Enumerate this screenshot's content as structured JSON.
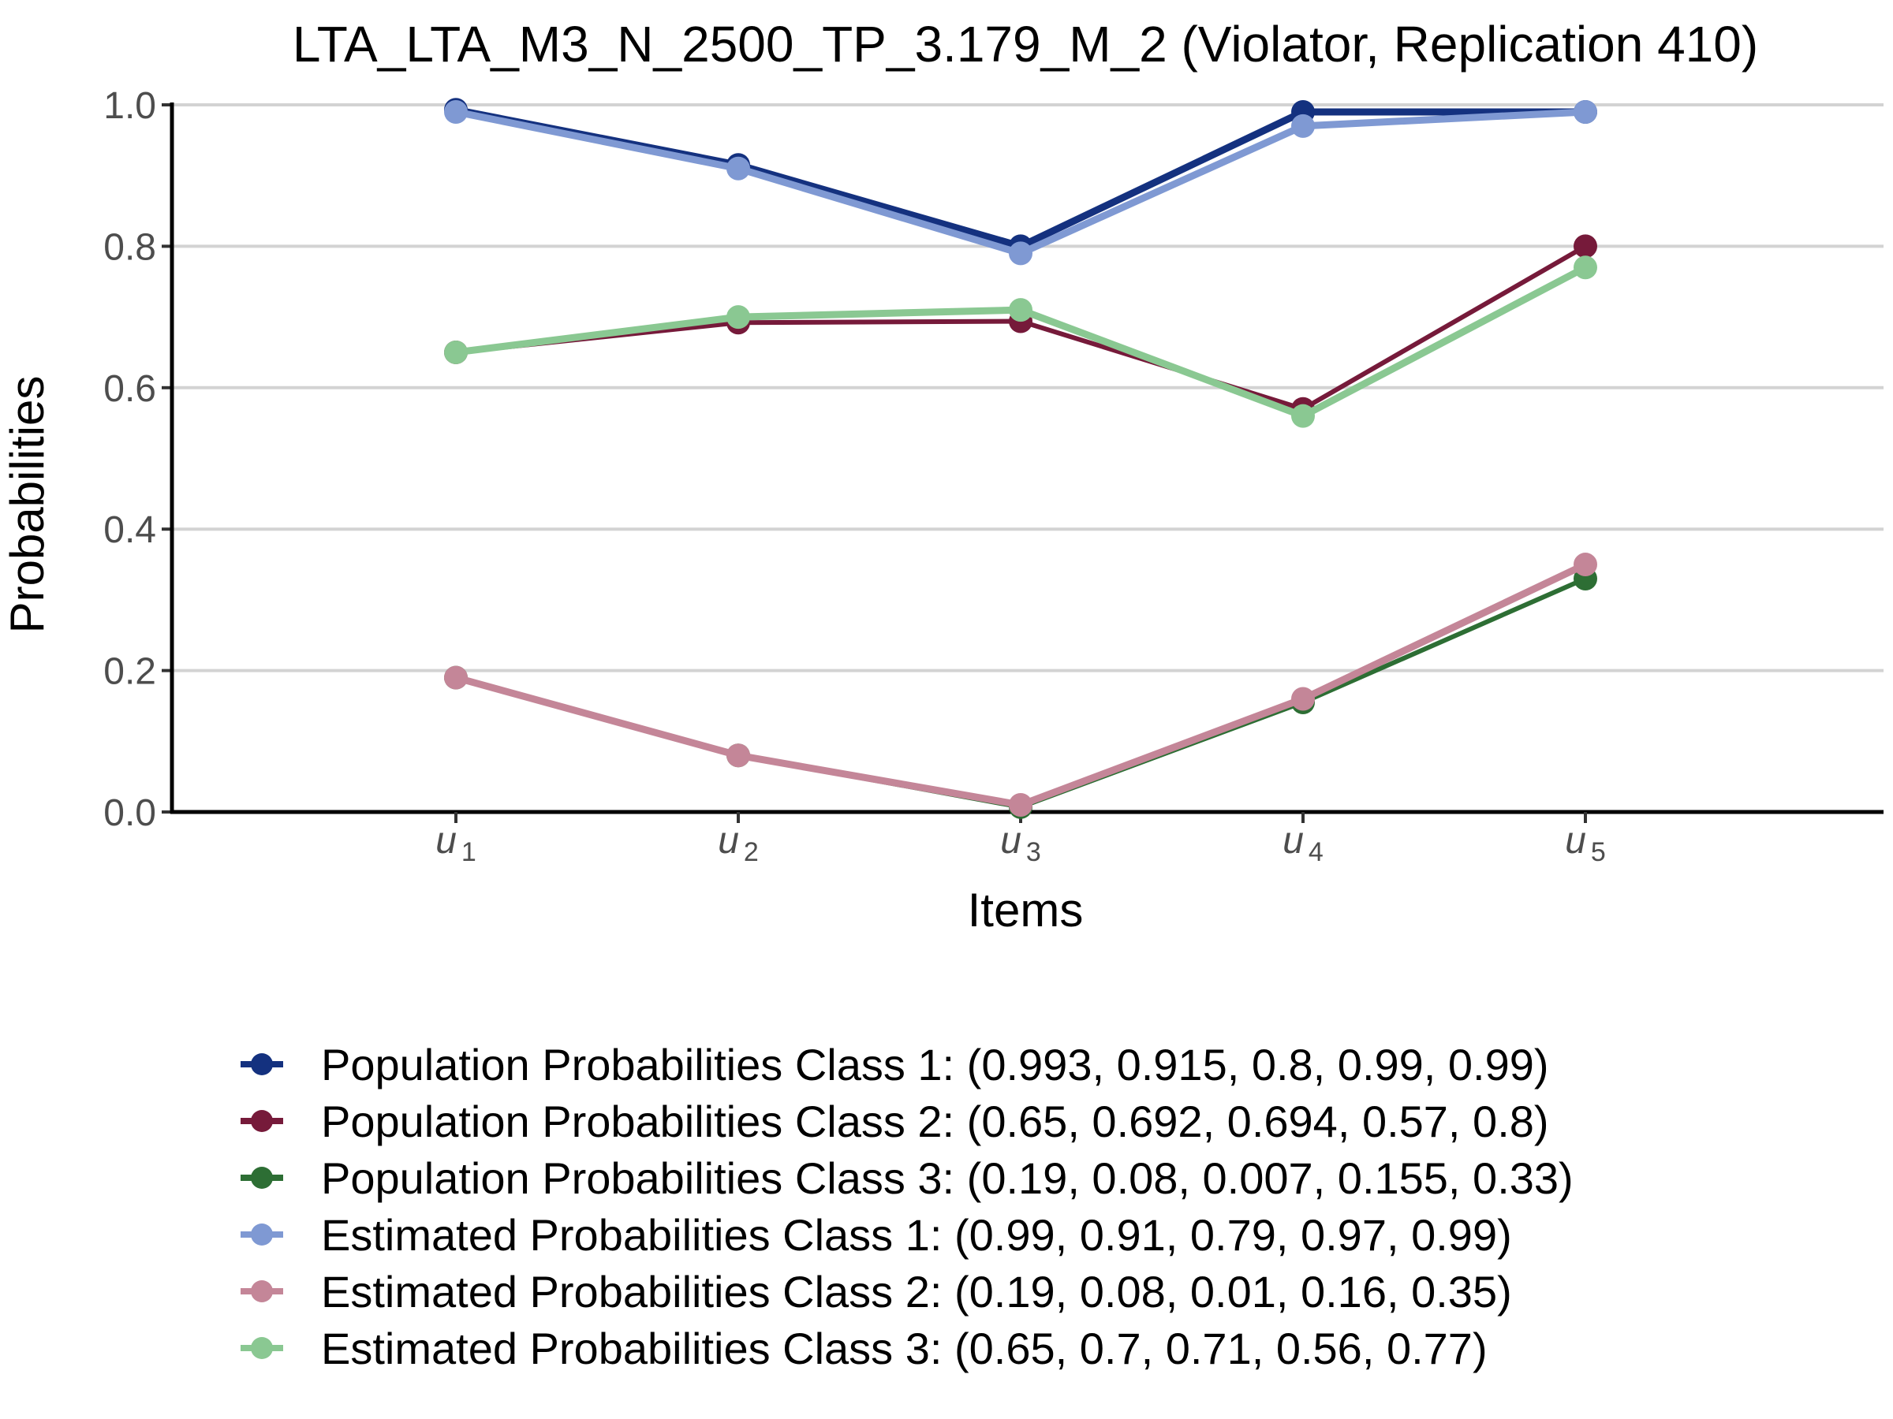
{
  "chart_data": {
    "type": "line",
    "title": "LTA_LTA_M3_N_2500_TP_3.179_M_2 (Violator, Replication 410)",
    "xlabel": "Items",
    "ylabel": "Probabilities",
    "categories": [
      {
        "base": "u",
        "sub": "1"
      },
      {
        "base": "u",
        "sub": "2"
      },
      {
        "base": "u",
        "sub": "3"
      },
      {
        "base": "u",
        "sub": "4"
      },
      {
        "base": "u",
        "sub": "5"
      }
    ],
    "ylim": [
      0,
      1
    ],
    "yticks": [
      "0.0",
      "0.2",
      "0.4",
      "0.6",
      "0.8",
      "1.0"
    ],
    "grid": "horizontal",
    "legend_position": "bottom",
    "series": [
      {
        "name": "Population Probabilities Class 1: (0.993, 0.915, 0.8, 0.99, 0.99)",
        "color": "#14317f",
        "values": [
          0.993,
          0.915,
          0.8,
          0.99,
          0.99
        ],
        "width": 9
      },
      {
        "name": "Population Probabilities Class 2: (0.65, 0.692, 0.694, 0.57, 0.8)",
        "color": "#761a3a",
        "values": [
          0.65,
          0.692,
          0.694,
          0.57,
          0.8
        ],
        "width": 6
      },
      {
        "name": "Population Probabilities Class 3: (0.19, 0.08, 0.007, 0.155, 0.33)",
        "color": "#2d6e34",
        "values": [
          0.19,
          0.08,
          0.007,
          0.155,
          0.33
        ],
        "width": 6
      },
      {
        "name": "Estimated Probabilities Class 1: (0.99, 0.91, 0.79, 0.97, 0.99)",
        "color": "#7f99d3",
        "values": [
          0.99,
          0.91,
          0.79,
          0.97,
          0.99
        ],
        "width": 9
      },
      {
        "name": "Estimated Probabilities Class 2: (0.19, 0.08, 0.01, 0.16, 0.35)",
        "color": "#c48698",
        "values": [
          0.19,
          0.08,
          0.01,
          0.16,
          0.35
        ],
        "width": 9
      },
      {
        "name": "Estimated Probabilities Class 3: (0.65, 0.7, 0.71, 0.56, 0.77)",
        "color": "#8ac892",
        "values": [
          0.65,
          0.7,
          0.71,
          0.56,
          0.77
        ],
        "width": 9
      }
    ]
  }
}
